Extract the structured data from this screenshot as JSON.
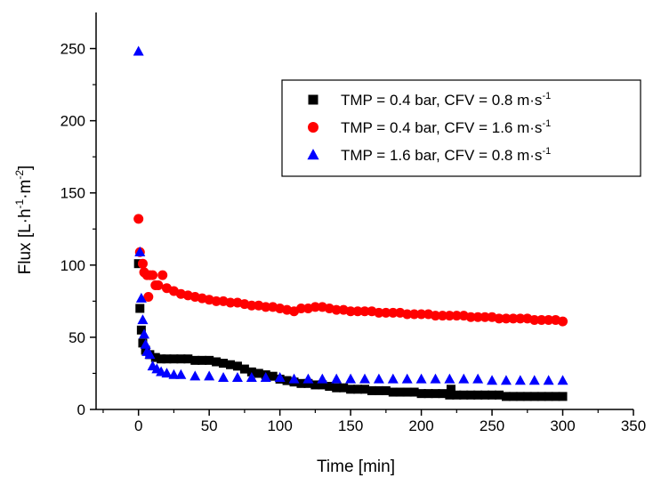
{
  "chart_data": {
    "type": "scatter",
    "title": "",
    "xlabel": "Time [min]",
    "ylabel_parts": [
      "Flux [L·h",
      "-1",
      "·m",
      "-2",
      "]"
    ],
    "xlim": [
      -30,
      350
    ],
    "ylim": [
      0,
      275
    ],
    "xticks": [
      0,
      50,
      100,
      150,
      200,
      250,
      300,
      350
    ],
    "yticks": [
      0,
      50,
      100,
      150,
      200,
      250
    ],
    "grid": false,
    "legend_position": "top-right",
    "series": [
      {
        "name_parts": [
          "TMP = 0.4 bar, CFV = 0.8 m·s",
          "-1"
        ],
        "marker": "square",
        "color": "#000000",
        "points": [
          [
            0,
            101
          ],
          [
            1,
            70
          ],
          [
            2,
            55
          ],
          [
            3,
            46
          ],
          [
            5,
            41
          ],
          [
            8,
            38
          ],
          [
            12,
            36
          ],
          [
            16,
            35
          ],
          [
            20,
            35
          ],
          [
            25,
            35
          ],
          [
            30,
            35
          ],
          [
            35,
            35
          ],
          [
            40,
            34
          ],
          [
            45,
            34
          ],
          [
            50,
            34
          ],
          [
            55,
            33
          ],
          [
            60,
            32
          ],
          [
            65,
            31
          ],
          [
            70,
            30
          ],
          [
            75,
            28
          ],
          [
            80,
            26
          ],
          [
            85,
            25
          ],
          [
            90,
            24
          ],
          [
            95,
            23
          ],
          [
            100,
            21
          ],
          [
            105,
            20
          ],
          [
            110,
            19
          ],
          [
            115,
            18
          ],
          [
            120,
            18
          ],
          [
            125,
            17
          ],
          [
            130,
            17
          ],
          [
            135,
            16
          ],
          [
            140,
            15
          ],
          [
            145,
            15
          ],
          [
            150,
            14
          ],
          [
            155,
            14
          ],
          [
            160,
            14
          ],
          [
            165,
            13
          ],
          [
            170,
            13
          ],
          [
            175,
            13
          ],
          [
            180,
            12
          ],
          [
            185,
            12
          ],
          [
            190,
            12
          ],
          [
            195,
            12
          ],
          [
            200,
            11
          ],
          [
            205,
            11
          ],
          [
            210,
            11
          ],
          [
            215,
            11
          ],
          [
            220,
            10
          ],
          [
            221,
            14
          ],
          [
            225,
            10
          ],
          [
            230,
            10
          ],
          [
            235,
            10
          ],
          [
            240,
            10
          ],
          [
            245,
            10
          ],
          [
            250,
            10
          ],
          [
            255,
            10
          ],
          [
            260,
            9
          ],
          [
            265,
            9
          ],
          [
            270,
            9
          ],
          [
            275,
            9
          ],
          [
            280,
            9
          ],
          [
            285,
            9
          ],
          [
            290,
            9
          ],
          [
            295,
            9
          ],
          [
            300,
            9
          ]
        ]
      },
      {
        "name_parts": [
          "TMP = 0.4 bar, CFV = 1.6 m·s",
          "-1"
        ],
        "marker": "circle",
        "color": "#ff0000",
        "points": [
          [
            0,
            132
          ],
          [
            1,
            109
          ],
          [
            3,
            101
          ],
          [
            4,
            95
          ],
          [
            6,
            93
          ],
          [
            8,
            93
          ],
          [
            7,
            78
          ],
          [
            10,
            93
          ],
          [
            12,
            86
          ],
          [
            14,
            86
          ],
          [
            17,
            93
          ],
          [
            20,
            84
          ],
          [
            25,
            82
          ],
          [
            30,
            80
          ],
          [
            35,
            79
          ],
          [
            40,
            78
          ],
          [
            45,
            77
          ],
          [
            50,
            76
          ],
          [
            55,
            75
          ],
          [
            60,
            75
          ],
          [
            65,
            74
          ],
          [
            70,
            74
          ],
          [
            75,
            73
          ],
          [
            80,
            72
          ],
          [
            85,
            72
          ],
          [
            90,
            71
          ],
          [
            95,
            71
          ],
          [
            100,
            70
          ],
          [
            105,
            69
          ],
          [
            110,
            68
          ],
          [
            115,
            70
          ],
          [
            120,
            70
          ],
          [
            125,
            71
          ],
          [
            130,
            71
          ],
          [
            135,
            70
          ],
          [
            140,
            69
          ],
          [
            145,
            69
          ],
          [
            150,
            68
          ],
          [
            155,
            68
          ],
          [
            160,
            68
          ],
          [
            165,
            68
          ],
          [
            170,
            67
          ],
          [
            175,
            67
          ],
          [
            180,
            67
          ],
          [
            185,
            67
          ],
          [
            190,
            66
          ],
          [
            195,
            66
          ],
          [
            200,
            66
          ],
          [
            205,
            66
          ],
          [
            210,
            65
          ],
          [
            215,
            65
          ],
          [
            220,
            65
          ],
          [
            225,
            65
          ],
          [
            230,
            65
          ],
          [
            235,
            64
          ],
          [
            240,
            64
          ],
          [
            245,
            64
          ],
          [
            250,
            64
          ],
          [
            255,
            63
          ],
          [
            260,
            63
          ],
          [
            265,
            63
          ],
          [
            270,
            63
          ],
          [
            275,
            63
          ],
          [
            280,
            62
          ],
          [
            285,
            62
          ],
          [
            290,
            62
          ],
          [
            295,
            62
          ],
          [
            300,
            61
          ]
        ]
      },
      {
        "name_parts": [
          "TMP = 1.6 bar, CFV = 0.8 m·s",
          "-1"
        ],
        "marker": "triangle",
        "color": "#0000ff",
        "points": [
          [
            0,
            248
          ],
          [
            1,
            109
          ],
          [
            2,
            77
          ],
          [
            3,
            62
          ],
          [
            4,
            52
          ],
          [
            5,
            45
          ],
          [
            6,
            40
          ],
          [
            8,
            38
          ],
          [
            10,
            30
          ],
          [
            13,
            28
          ],
          [
            16,
            26
          ],
          [
            20,
            25
          ],
          [
            25,
            24
          ],
          [
            30,
            24
          ],
          [
            40,
            23
          ],
          [
            50,
            23
          ],
          [
            60,
            22
          ],
          [
            70,
            22
          ],
          [
            80,
            22
          ],
          [
            90,
            22
          ],
          [
            100,
            22
          ],
          [
            110,
            21
          ],
          [
            120,
            21
          ],
          [
            130,
            21
          ],
          [
            140,
            21
          ],
          [
            150,
            21
          ],
          [
            160,
            21
          ],
          [
            170,
            21
          ],
          [
            180,
            21
          ],
          [
            190,
            21
          ],
          [
            200,
            21
          ],
          [
            210,
            21
          ],
          [
            220,
            21
          ],
          [
            230,
            21
          ],
          [
            240,
            21
          ],
          [
            250,
            20
          ],
          [
            260,
            20
          ],
          [
            270,
            20
          ],
          [
            280,
            20
          ],
          [
            290,
            20
          ],
          [
            300,
            20
          ]
        ]
      }
    ]
  }
}
